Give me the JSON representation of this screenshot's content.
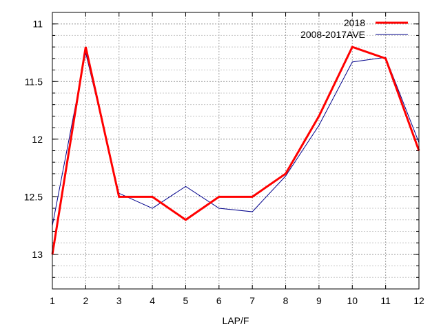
{
  "chart_data": {
    "type": "line",
    "xlabel": "LAP/F",
    "ylabel": "",
    "title": "",
    "x": [
      1,
      2,
      3,
      4,
      5,
      6,
      7,
      8,
      9,
      10,
      11,
      12
    ],
    "xlim": [
      1,
      12
    ],
    "ylim": [
      13.3,
      10.9
    ],
    "y_inverted": true,
    "x_ticks": [
      "1",
      "2",
      "3",
      "4",
      "5",
      "6",
      "7",
      "8",
      "9",
      "10",
      "11",
      "12"
    ],
    "y_ticks": [
      "11",
      "11.5",
      "12",
      "12.5",
      "13"
    ],
    "y_tick_values": [
      11,
      11.5,
      12,
      12.5,
      13
    ],
    "y_minor_step": 0.1,
    "grid": true,
    "legend_position": "top-right",
    "series": [
      {
        "name": "2018",
        "color": "#ff0000",
        "values": [
          13.0,
          11.2,
          12.5,
          12.5,
          12.7,
          12.5,
          12.5,
          12.3,
          11.8,
          11.2,
          11.3,
          12.1
        ]
      },
      {
        "name": "2008-2017AVE",
        "color": "#00008b",
        "values": [
          12.75,
          11.25,
          12.47,
          12.6,
          12.41,
          12.6,
          12.63,
          12.32,
          11.88,
          11.33,
          11.29,
          12.03
        ]
      }
    ]
  }
}
